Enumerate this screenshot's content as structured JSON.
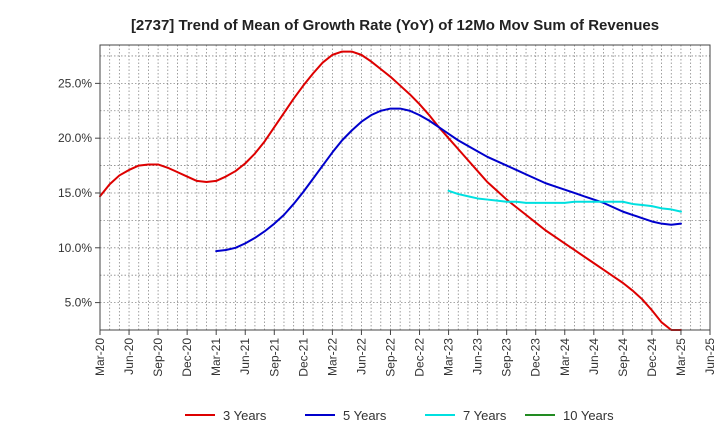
{
  "chart_data": {
    "type": "line",
    "title": "[2737]  Trend of Mean of Growth Rate (YoY) of 12Mo Mov Sum of Revenues",
    "xlabel": "",
    "ylabel": "",
    "ylim": [
      2.5,
      28.5
    ],
    "y_ticks": [
      5.0,
      10.0,
      15.0,
      20.0,
      25.0
    ],
    "y_tick_labels": [
      "5.0%",
      "10.0%",
      "15.0%",
      "20.0%",
      "25.0%"
    ],
    "x_range": [
      0,
      63
    ],
    "x_ticks": [
      0,
      3,
      6,
      9,
      12,
      15,
      18,
      21,
      24,
      27,
      30,
      33,
      36,
      39,
      42,
      45,
      48,
      51,
      54,
      57,
      60,
      63
    ],
    "x_tick_labels": [
      "Mar-20",
      "Jun-20",
      "Sep-20",
      "Dec-20",
      "Mar-21",
      "Jun-21",
      "Sep-21",
      "Dec-21",
      "Mar-22",
      "Jun-22",
      "Sep-22",
      "Dec-22",
      "Mar-23",
      "Jun-23",
      "Sep-23",
      "Dec-23",
      "Mar-24",
      "Jun-24",
      "Sep-24",
      "Dec-24",
      "Mar-25",
      "Jun-25"
    ],
    "grid": true,
    "legend_position": "bottom",
    "series": [
      {
        "name": "3 Years",
        "color": "#dd0000",
        "x": [
          0,
          1,
          2,
          3,
          4,
          5,
          6,
          7,
          8,
          9,
          10,
          11,
          12,
          13,
          14,
          15,
          16,
          17,
          18,
          19,
          20,
          21,
          22,
          23,
          24,
          25,
          26,
          27,
          28,
          29,
          30,
          31,
          32,
          33,
          34,
          35,
          36,
          37,
          38,
          39,
          40,
          41,
          42,
          43,
          44,
          45,
          46,
          47,
          48,
          49,
          50,
          51,
          52,
          53,
          54,
          55,
          56,
          57,
          58,
          59,
          60
        ],
        "values": [
          14.7,
          15.8,
          16.6,
          17.1,
          17.5,
          17.6,
          17.6,
          17.3,
          16.9,
          16.5,
          16.1,
          16.0,
          16.1,
          16.5,
          17.0,
          17.7,
          18.6,
          19.7,
          21.0,
          22.3,
          23.6,
          24.8,
          25.9,
          26.9,
          27.6,
          27.9,
          27.9,
          27.6,
          27.0,
          26.3,
          25.6,
          24.8,
          24.0,
          23.1,
          22.1,
          21.0,
          20.0,
          19.0,
          18.0,
          17.0,
          16.0,
          15.2,
          14.4,
          13.7,
          13.0,
          12.3,
          11.6,
          11.0,
          10.4,
          9.8,
          9.2,
          8.6,
          8.0,
          7.4,
          6.8,
          6.1,
          5.3,
          4.3,
          3.2,
          2.5,
          2.5
        ]
      },
      {
        "name": "5 Years",
        "color": "#0000cc",
        "x": [
          12,
          13,
          14,
          15,
          16,
          17,
          18,
          19,
          20,
          21,
          22,
          23,
          24,
          25,
          26,
          27,
          28,
          29,
          30,
          31,
          32,
          33,
          34,
          35,
          36,
          37,
          38,
          39,
          40,
          41,
          42,
          43,
          44,
          45,
          46,
          47,
          48,
          49,
          50,
          51,
          52,
          53,
          54,
          55,
          56,
          57,
          58,
          59,
          60
        ],
        "values": [
          9.7,
          9.8,
          10.0,
          10.4,
          10.9,
          11.5,
          12.2,
          13.0,
          14.0,
          15.1,
          16.3,
          17.5,
          18.7,
          19.8,
          20.7,
          21.5,
          22.1,
          22.5,
          22.7,
          22.7,
          22.5,
          22.1,
          21.6,
          21.0,
          20.4,
          19.8,
          19.3,
          18.8,
          18.3,
          17.9,
          17.5,
          17.1,
          16.7,
          16.3,
          15.9,
          15.6,
          15.3,
          15.0,
          14.7,
          14.4,
          14.1,
          13.7,
          13.3,
          13.0,
          12.7,
          12.4,
          12.2,
          12.1,
          12.2
        ]
      },
      {
        "name": "7 Years",
        "color": "#00e0e0",
        "x": [
          36,
          37,
          38,
          39,
          40,
          41,
          42,
          43,
          44,
          45,
          46,
          47,
          48,
          49,
          50,
          51,
          52,
          53,
          54,
          55,
          56,
          57,
          58,
          59,
          60
        ],
        "values": [
          15.2,
          14.9,
          14.7,
          14.5,
          14.4,
          14.3,
          14.2,
          14.2,
          14.1,
          14.1,
          14.1,
          14.1,
          14.1,
          14.2,
          14.2,
          14.2,
          14.2,
          14.2,
          14.2,
          14.0,
          13.9,
          13.8,
          13.6,
          13.5,
          13.3
        ]
      },
      {
        "name": "10 Years",
        "color": "#228b22",
        "x": [],
        "values": []
      }
    ]
  }
}
